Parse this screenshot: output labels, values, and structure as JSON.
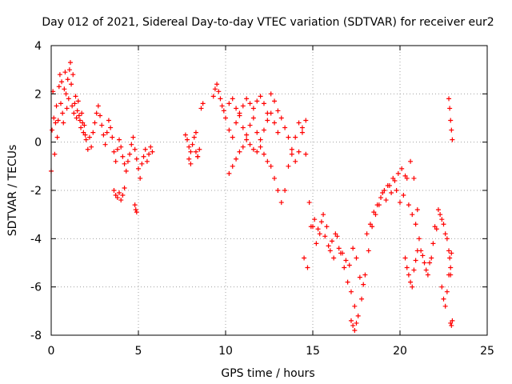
{
  "chart_data": {
    "type": "scatter",
    "title": "Day 012 of 2021, Sidereal Day-to-day VTEC variation (SDTVAR) for receiver eur2",
    "xlabel": "GPS time / hours",
    "ylabel": "SDTVAR / TECUs",
    "xlim": [
      0,
      25
    ],
    "ylim": [
      -8,
      4
    ],
    "xticks": [
      0,
      5,
      10,
      15,
      20,
      25
    ],
    "yticks": [
      -8,
      -6,
      -4,
      -2,
      0,
      2,
      4
    ],
    "xtick_labels": [
      "0",
      "5",
      "10",
      "15",
      "20",
      "25"
    ],
    "ytick_labels": [
      "-8",
      "-6",
      "-4",
      "-2",
      "0",
      "2",
      "4"
    ],
    "grid": true,
    "marker": "+",
    "color": "#ff0000",
    "series": [
      {
        "name": "SDTVAR",
        "x": [
          0.0,
          0.05,
          0.1,
          0.15,
          0.2,
          0.25,
          0.3,
          0.35,
          0.4,
          0.45,
          0.5,
          0.55,
          0.6,
          0.65,
          0.7,
          0.75,
          0.8,
          0.85,
          0.9,
          0.95,
          1.0,
          1.05,
          1.1,
          1.15,
          1.2,
          1.25,
          1.3,
          1.35,
          1.4,
          1.45,
          1.5,
          1.55,
          1.6,
          1.65,
          1.7,
          1.75,
          1.8,
          1.85,
          1.9,
          1.95,
          2.0,
          2.1,
          2.2,
          2.3,
          2.4,
          2.5,
          2.6,
          2.7,
          2.8,
          2.9,
          3.0,
          3.1,
          3.2,
          3.3,
          3.4,
          3.5,
          3.6,
          3.7,
          3.8,
          3.9,
          4.0,
          4.1,
          4.2,
          4.3,
          4.4,
          4.5,
          4.6,
          4.7,
          4.8,
          4.9,
          5.0,
          5.1,
          5.2,
          5.3,
          5.4,
          5.5,
          5.6,
          5.7,
          5.8,
          3.6,
          3.7,
          3.8,
          3.9,
          4.0,
          4.1,
          4.2,
          4.8,
          4.85,
          4.9,
          7.7,
          7.8,
          7.9,
          8.0,
          8.1,
          8.2,
          8.3,
          8.4,
          8.5,
          8.6,
          8.7,
          7.9,
          8.0,
          8.3,
          8.4,
          9.3,
          9.4,
          9.5,
          9.6,
          9.7,
          9.8,
          9.9,
          10.0,
          10.2,
          10.4,
          10.6,
          10.8,
          11.0,
          11.2,
          11.4,
          11.6,
          11.8,
          12.0,
          12.2,
          12.4,
          12.6,
          12.8,
          13.0,
          13.2,
          13.4,
          13.6,
          13.8,
          14.0,
          14.2,
          14.4,
          14.6,
          10.2,
          10.4,
          10.6,
          10.8,
          11.0,
          11.2,
          11.4,
          11.6,
          11.8,
          12.0,
          12.2,
          12.4,
          12.6,
          12.8,
          13.0,
          10.2,
          10.4,
          10.6,
          10.8,
          11.0,
          11.2,
          11.4,
          11.6,
          11.8,
          12.0,
          12.2,
          12.4,
          12.6,
          12.8,
          13.0,
          13.2,
          13.4,
          13.6,
          13.8,
          14.0,
          14.2,
          14.4,
          14.6,
          14.8,
          15.0,
          15.2,
          15.4,
          15.6,
          15.8,
          16.0,
          16.2,
          16.4,
          16.6,
          16.8,
          17.0,
          17.2,
          17.4,
          17.6,
          17.8,
          18.0,
          18.2,
          18.4,
          18.6,
          18.8,
          19.0,
          19.2,
          19.4,
          19.6,
          19.8,
          20.0,
          20.2,
          20.4,
          20.6,
          20.8,
          21.0,
          21.2,
          21.4,
          21.6,
          21.8,
          22.0,
          22.2,
          22.4,
          22.6,
          22.8,
          22.9,
          14.5,
          14.7,
          14.9,
          15.1,
          15.3,
          15.5,
          15.7,
          15.9,
          16.1,
          16.3,
          16.5,
          16.7,
          16.9,
          17.1,
          17.3,
          17.5,
          17.7,
          17.9,
          18.1,
          18.3,
          18.5,
          18.7,
          18.9,
          19.1,
          19.3,
          19.5,
          19.7,
          19.9,
          20.1,
          20.3,
          20.5,
          20.7,
          20.9,
          21.1,
          21.3,
          21.5,
          21.7,
          21.9,
          22.1,
          22.3,
          22.5,
          22.7,
          17.2,
          17.3,
          17.4,
          17.5,
          20.3,
          20.4,
          20.5,
          20.6,
          20.7,
          20.8,
          20.9,
          21.0,
          22.4,
          22.5,
          22.6,
          22.7,
          22.8,
          22.85,
          22.9,
          22.95,
          22.8,
          22.85,
          22.9,
          22.95,
          23.0,
          22.9,
          22.95,
          23.0
        ],
        "y": [
          -1.2,
          0.5,
          2.1,
          1.0,
          -0.5,
          0.8,
          1.5,
          0.2,
          0.9,
          2.3,
          2.8,
          1.6,
          2.5,
          1.2,
          0.8,
          2.2,
          2.9,
          2.0,
          1.4,
          2.6,
          1.8,
          3.0,
          3.3,
          2.4,
          1.5,
          2.8,
          1.2,
          1.6,
          1.9,
          1.0,
          1.3,
          1.7,
          1.1,
          0.9,
          0.6,
          1.2,
          0.8,
          0.4,
          0.7,
          0.3,
          0.1,
          -0.3,
          0.2,
          -0.2,
          0.4,
          0.8,
          1.2,
          1.5,
          1.1,
          0.7,
          0.3,
          -0.1,
          0.4,
          0.9,
          0.6,
          0.2,
          -0.4,
          -0.8,
          -0.3,
          0.1,
          -0.2,
          -0.6,
          -0.9,
          -1.2,
          -0.8,
          -0.5,
          -0.1,
          0.2,
          -0.3,
          -0.7,
          -1.1,
          -1.5,
          -0.9,
          -0.6,
          -0.3,
          -0.8,
          -0.5,
          -0.2,
          -0.4,
          -2.0,
          -2.2,
          -2.3,
          -2.1,
          -2.4,
          -2.2,
          -1.9,
          -2.6,
          -2.8,
          -2.9,
          0.3,
          0.1,
          -0.2,
          -0.4,
          -0.1,
          0.2,
          0.4,
          -0.6,
          -0.3,
          1.4,
          1.6,
          -0.7,
          -0.9,
          -0.4,
          -0.6,
          1.9,
          2.2,
          2.4,
          2.1,
          1.8,
          1.5,
          1.3,
          1.0,
          1.6,
          1.8,
          1.4,
          1.2,
          1.5,
          1.8,
          1.6,
          1.4,
          1.7,
          1.9,
          1.6,
          1.2,
          2.0,
          1.7,
          1.3,
          1.0,
          0.6,
          0.2,
          -0.3,
          -0.8,
          -0.4,
          0.6,
          0.9,
          0.5,
          0.2,
          0.8,
          1.1,
          0.6,
          0.3,
          0.7,
          1.0,
          0.4,
          0.1,
          0.5,
          0.9,
          1.2,
          0.8,
          0.4,
          -1.3,
          -1.0,
          -0.7,
          -0.4,
          -0.2,
          0.1,
          -0.1,
          -0.3,
          -0.4,
          -0.2,
          -0.5,
          -0.8,
          -1.0,
          -1.5,
          -2.0,
          -2.5,
          -2.0,
          -1.0,
          -0.5,
          0.2,
          0.8,
          0.4,
          -0.5,
          -2.5,
          -3.5,
          -4.2,
          -3.8,
          -3.0,
          -3.5,
          -4.5,
          -4.8,
          -3.9,
          -4.6,
          -5.2,
          -5.8,
          -6.2,
          -6.8,
          -7.2,
          -6.5,
          -5.5,
          -4.5,
          -3.5,
          -3.0,
          -2.6,
          -2.1,
          -2.4,
          -1.8,
          -1.5,
          -2.0,
          -2.5,
          -2.2,
          -1.5,
          -0.8,
          -1.5,
          -2.8,
          -4.5,
          -5.0,
          -5.5,
          -4.8,
          -3.5,
          -2.8,
          -3.2,
          -3.8,
          -4.5,
          -5.5,
          -4.8,
          -5.2,
          -3.5,
          -3.2,
          -3.6,
          -3.3,
          -3.9,
          -4.3,
          -4.1,
          -3.8,
          -4.4,
          -4.6,
          -4.9,
          -5.1,
          -4.4,
          -4.8,
          -5.6,
          -5.9,
          -3.8,
          -3.4,
          -2.9,
          -2.6,
          -2.3,
          -2.0,
          -1.8,
          -2.1,
          -1.6,
          -1.3,
          -1.1,
          -1.4,
          -2.6,
          -3.0,
          -3.4,
          -4.0,
          -4.7,
          -5.3,
          -5.0,
          -4.2,
          -3.6,
          -3.0,
          -3.4,
          -4.0,
          -7.4,
          -7.6,
          -7.8,
          -7.5,
          -4.8,
          -5.2,
          -5.5,
          -5.8,
          -6.0,
          -5.3,
          -4.9,
          -4.5,
          -6.0,
          -6.5,
          -6.8,
          -6.2,
          -5.5,
          -4.8,
          -5.2,
          -4.6,
          1.8,
          1.4,
          0.9,
          0.5,
          0.1,
          -7.5,
          -7.6,
          -7.4
        ]
      }
    ]
  }
}
